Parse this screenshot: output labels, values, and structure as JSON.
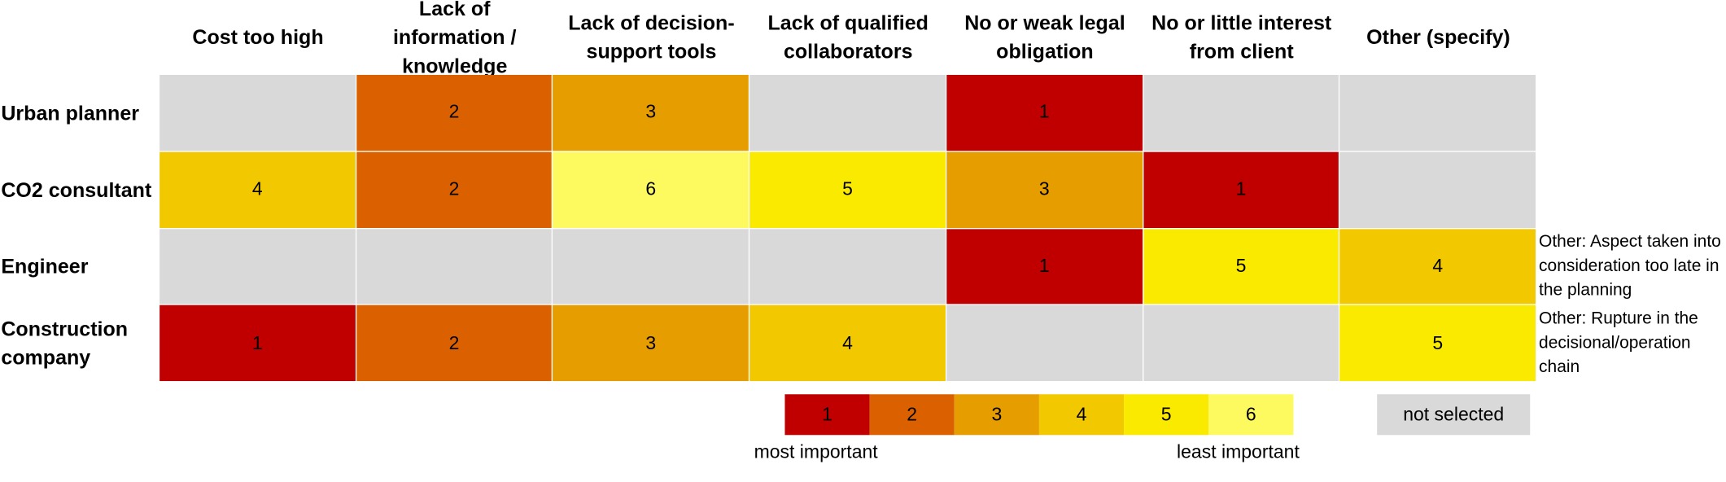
{
  "chart_data": {
    "type": "heatmap",
    "columns": [
      "Cost too high",
      "Lack of information / knowledge",
      "Lack of decision-support tools",
      "Lack of qualified collaborators",
      "No or weak legal obligation",
      "No or little interest from client",
      "Other (specify)"
    ],
    "rows": [
      {
        "name": "Urban planner",
        "values": [
          null,
          2,
          3,
          null,
          1,
          null,
          null
        ],
        "note": null
      },
      {
        "name": "CO2 consultant",
        "values": [
          4,
          2,
          6,
          5,
          3,
          1,
          null
        ],
        "note": null
      },
      {
        "name": "Engineer",
        "values": [
          null,
          null,
          null,
          null,
          1,
          5,
          4
        ],
        "note": "Other: Aspect taken into consideration too late in the planning"
      },
      {
        "name": "Construction company",
        "values": [
          1,
          2,
          3,
          4,
          null,
          null,
          5
        ],
        "note": "Other: Rupture in the decisional/operation chain"
      }
    ],
    "scale": [
      {
        "value": 1,
        "color": "#c00000"
      },
      {
        "value": 2,
        "color": "#db6100"
      },
      {
        "value": 3,
        "color": "#e69d00"
      },
      {
        "value": 4,
        "color": "#f2c800"
      },
      {
        "value": 5,
        "color": "#faea00"
      },
      {
        "value": 6,
        "color": "#fdfa60"
      }
    ],
    "legend": {
      "low_label": "most important",
      "high_label": "least important",
      "missing_label": "not selected",
      "missing_color": "#d9d9d9"
    }
  }
}
